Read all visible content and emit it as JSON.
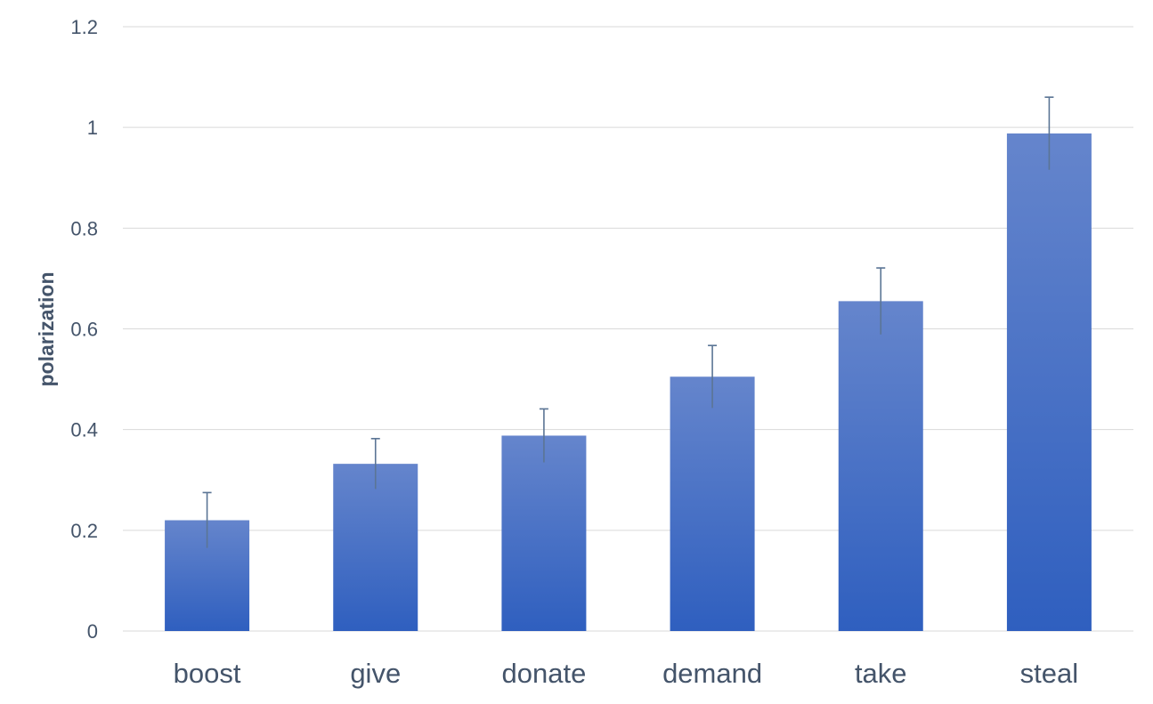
{
  "chart_data": {
    "type": "bar",
    "title": "",
    "xlabel": "",
    "ylabel": "polarization",
    "categories": [
      "boost",
      "give",
      "donate",
      "demand",
      "take",
      "steal"
    ],
    "values": [
      0.22,
      0.332,
      0.388,
      0.505,
      0.655,
      0.988
    ],
    "error_bars": [
      0.055,
      0.05,
      0.053,
      0.062,
      0.066,
      0.072
    ],
    "ylim": [
      0,
      1.2
    ],
    "yticks": [
      0,
      0.2,
      0.4,
      0.6,
      0.8,
      1,
      1.2
    ],
    "ytick_labels": [
      "0",
      "0.2",
      "0.4",
      "0.6",
      "0.8",
      "1",
      "1.2"
    ],
    "grid": true,
    "legend": "none",
    "colors": {
      "bar_top": "#6585cc",
      "bar_bottom": "#2f5fbf",
      "error_bar": "#5b7595",
      "gridline": "#d9d9d9",
      "text": "#44546a"
    }
  }
}
